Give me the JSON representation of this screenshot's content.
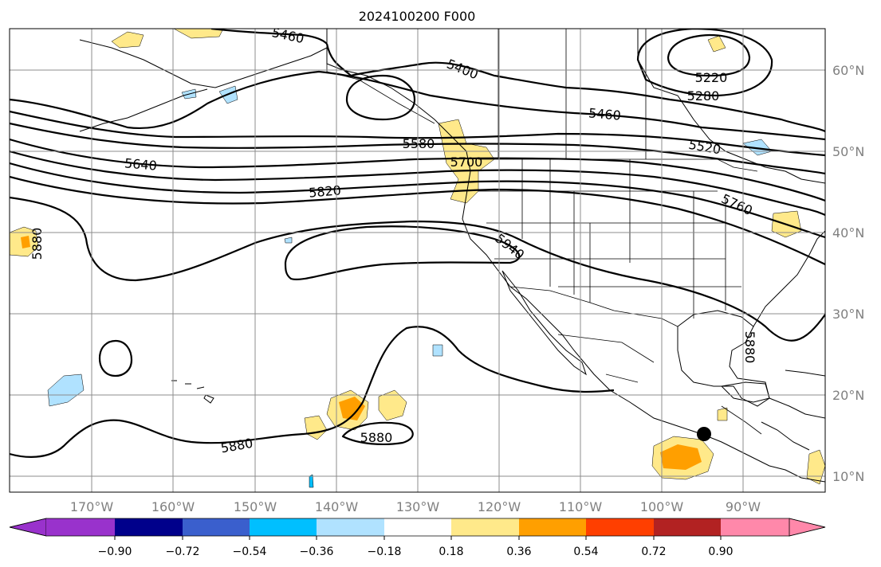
{
  "title": "2024100200 F000",
  "map": {
    "lat_labels": [
      "60°N",
      "50°N",
      "40°N",
      "30°N",
      "20°N",
      "10°N"
    ],
    "lon_labels": [
      "170°W",
      "160°W",
      "150°W",
      "140°W",
      "130°W",
      "120°W",
      "110°W",
      "100°W",
      "90°W"
    ],
    "contour_labels": [
      "5460",
      "5400",
      "5220",
      "5280",
      "5460",
      "5520",
      "5580",
      "5640",
      "5700",
      "5820",
      "5760",
      "5880",
      "5940",
      "5880",
      "5880",
      "5880"
    ],
    "grid": true
  },
  "colorbar": {
    "ticks": [
      "−0.90",
      "−0.72",
      "−0.54",
      "−0.36",
      "−0.18",
      "0.18",
      "0.36",
      "0.54",
      "0.72",
      "0.90"
    ],
    "colors": [
      "#9932cc",
      "#00008b",
      "#3a5fcd",
      "#00bfff",
      "#b0e2ff",
      "#ffffff",
      "#ffe98a",
      "#ff9f00",
      "#ff3f00",
      "#b22222",
      "#ff88aa"
    ]
  },
  "colors": {
    "positive_light": "#ffe98a",
    "positive_mid": "#ff9f00",
    "negative_light": "#b0e2ff",
    "marker": "#000000"
  }
}
